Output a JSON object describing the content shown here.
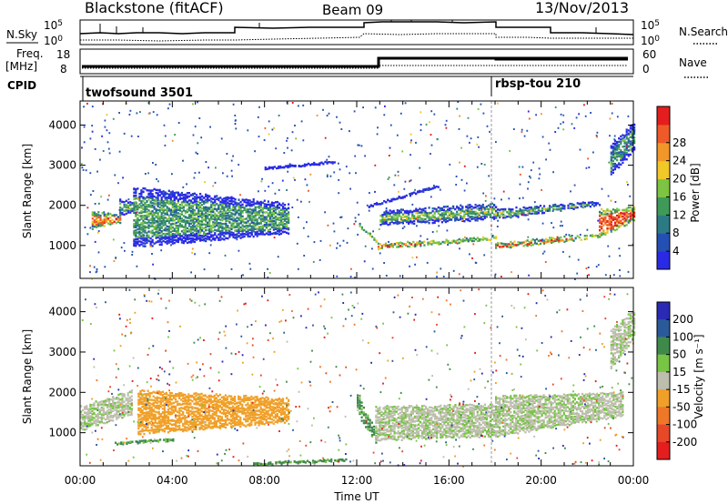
{
  "header": {
    "title": "Blackstone (fitACF)",
    "beam": "Beam 09",
    "date": "13/Nov/2013"
  },
  "top_panels": {
    "nsky": {
      "left_label": "N.Sky",
      "right_label": "N.Search",
      "yticks": [
        "10^5",
        "10^0"
      ],
      "right_yticks": [
        "10^5",
        "10^0"
      ]
    },
    "freq": {
      "left_label_line1": "Freq.",
      "left_label_line2": "[MHz]",
      "yticks": [
        "18",
        "8"
      ],
      "right_label": "Nave",
      "right_yticks": [
        "60",
        "0"
      ]
    },
    "cpid": {
      "label": "CPID",
      "programs": [
        {
          "name": "twofsound 3501",
          "start_hour": 0
        },
        {
          "name": "rbsp-tou 210",
          "start_hour": 18
        }
      ]
    }
  },
  "chart_data": [
    {
      "type": "heatmap",
      "panel": "power",
      "ylabel": "Slant Range [km]",
      "xlabel": "Time UT",
      "x_range_hours": [
        0,
        24
      ],
      "y_range_km": [
        180,
        4600
      ],
      "yticks": [
        1000,
        2000,
        3000,
        4000
      ],
      "xticks": [
        "00:00",
        "04:00",
        "08:00",
        "12:00",
        "16:00",
        "20:00",
        "00:00"
      ],
      "colorbar": {
        "label": "Power [dB]",
        "ticks": [
          4,
          8,
          12,
          16,
          20,
          24,
          28
        ],
        "colors": [
          "#2a2ae6",
          "#2450b4",
          "#2c7a84",
          "#3f9a5a",
          "#7cc441",
          "#f0c828",
          "#f2962a",
          "#ee5a28",
          "#e41e1e"
        ]
      },
      "bands": [
        {
          "t0": 0.5,
          "t1": 1.7,
          "r0": 1450,
          "r1": 1600,
          "r2": 1900,
          "r3": 1800,
          "level": 22
        },
        {
          "t0": 1.7,
          "t1": 2.4,
          "r0": 1800,
          "r1": 1900,
          "r2": 2200,
          "r3": 2100,
          "level": 12
        },
        {
          "t0": 2.3,
          "t1": 9.0,
          "r0": 1000,
          "r1": 1350,
          "r2": 2500,
          "r3": 2100,
          "level": 11
        },
        {
          "t0": 12.1,
          "t1": 12.9,
          "r0": 1500,
          "r1": 1100,
          "r2": 1600,
          "r3": 1100,
          "level": 24
        },
        {
          "t0": 12.9,
          "t1": 18.0,
          "r0": 950,
          "r1": 1200,
          "r2": 1100,
          "r3": 1250,
          "level": 26
        },
        {
          "t0": 13.0,
          "t1": 18.0,
          "r0": 1550,
          "r1": 1700,
          "r2": 1900,
          "r3": 2100,
          "level": 13
        },
        {
          "t0": 18.0,
          "t1": 22.5,
          "r0": 950,
          "r1": 1250,
          "r2": 1100,
          "r3": 1350,
          "level": 25
        },
        {
          "t0": 18.0,
          "t1": 22.5,
          "r0": 1700,
          "r1": 2050,
          "r2": 1950,
          "r3": 2150,
          "level": 13
        },
        {
          "t0": 22.5,
          "t1": 24.0,
          "r0": 1250,
          "r1": 1650,
          "r2": 1950,
          "r3": 2000,
          "level": 25
        },
        {
          "t0": 8.0,
          "t1": 11.0,
          "r0": 2950,
          "r1": 3100,
          "r2": 2950,
          "r3": 3100,
          "level": 6
        },
        {
          "t0": 12.5,
          "t1": 15.5,
          "r0": 2000,
          "r1": 2500,
          "r2": 2000,
          "r3": 2500,
          "level": 10
        },
        {
          "t0": 23.0,
          "t1": 24.0,
          "r0": 2800,
          "r1": 3400,
          "r2": 3600,
          "r3": 4100,
          "level": 10
        }
      ]
    },
    {
      "type": "heatmap",
      "panel": "velocity",
      "ylabel": "Slant Range [km]",
      "xlabel": "Time UT",
      "x_range_hours": [
        0,
        24
      ],
      "y_range_km": [
        180,
        4600
      ],
      "yticks": [
        1000,
        2000,
        3000,
        4000
      ],
      "xticks": [
        "00:00",
        "04:00",
        "08:00",
        "12:00",
        "16:00",
        "20:00",
        "00:00"
      ],
      "colorbar": {
        "label": "Velocity [m s⁻¹]",
        "ticks": [
          "200",
          "100",
          "50",
          "15",
          "-15",
          "-50",
          "-100",
          "-200"
        ],
        "colors": [
          "#2a2ab4",
          "#2a5a9a",
          "#3f8a4a",
          "#78c445",
          "#bebeae",
          "#f0a028",
          "#ee7828",
          "#e64828",
          "#e41e1e"
        ]
      },
      "bands": [
        {
          "t0": 0.0,
          "t1": 2.2,
          "r0": 1100,
          "r1": 1500,
          "r2": 1700,
          "r3": 2100,
          "level": -5
        },
        {
          "t0": 2.5,
          "t1": 9.0,
          "r0": 1000,
          "r1": 1300,
          "r2": 2100,
          "r3": 1900,
          "level": -60
        },
        {
          "t0": 1.5,
          "t1": 4.0,
          "r0": 750,
          "r1": 850,
          "r2": 750,
          "r3": 850,
          "level": 40
        },
        {
          "t0": 12.0,
          "t1": 12.8,
          "r0": 1500,
          "r1": 800,
          "r2": 2000,
          "r3": 1100,
          "level": 40
        },
        {
          "t0": 12.8,
          "t1": 18.0,
          "r0": 850,
          "r1": 950,
          "r2": 1700,
          "r3": 1750,
          "level": -5
        },
        {
          "t0": 18.0,
          "t1": 23.5,
          "r0": 950,
          "r1": 1450,
          "r2": 1950,
          "r3": 2050,
          "level": -5
        },
        {
          "t0": 7.5,
          "t1": 11.5,
          "r0": 250,
          "r1": 350,
          "r2": 250,
          "r3": 350,
          "level": 40
        },
        {
          "t0": 23.0,
          "t1": 24.0,
          "r0": 2600,
          "r1": 3400,
          "r2": 3600,
          "r3": 4100,
          "level": -5
        }
      ]
    }
  ]
}
